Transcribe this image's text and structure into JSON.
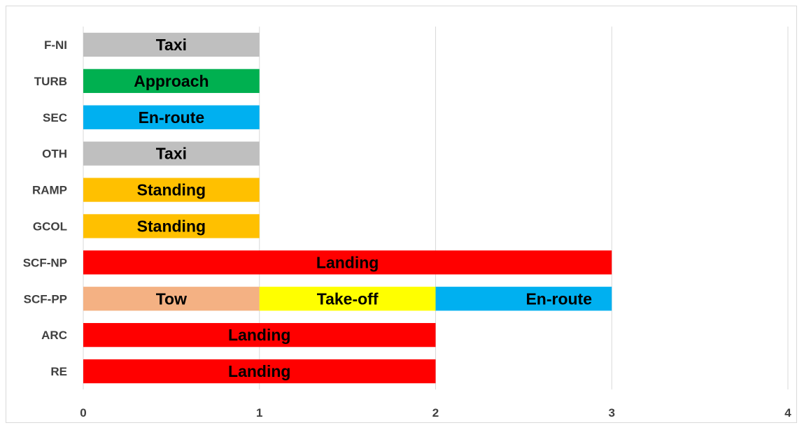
{
  "chart_data": {
    "type": "bar",
    "orientation": "horizontal",
    "stacked": true,
    "title": "",
    "xlabel": "",
    "ylabel": "",
    "xlim": [
      0,
      4
    ],
    "x_ticks": [
      "0",
      "1",
      "2",
      "3",
      "4"
    ],
    "grid": "vertical",
    "legend": "none",
    "categories": [
      "F-NI",
      "TURB",
      "SEC",
      "OTH",
      "RAMP",
      "GCOL",
      "SCF-NP",
      "SCF-PP",
      "ARC",
      "RE"
    ],
    "rows": [
      {
        "category": "F-NI",
        "segments": [
          {
            "label": "Taxi",
            "value": 1,
            "color": "#bfbfbf"
          }
        ]
      },
      {
        "category": "TURB",
        "segments": [
          {
            "label": "Approach",
            "value": 1,
            "color": "#00b050"
          }
        ]
      },
      {
        "category": "SEC",
        "segments": [
          {
            "label": "En-route",
            "value": 1,
            "color": "#00b0f0"
          }
        ]
      },
      {
        "category": "OTH",
        "segments": [
          {
            "label": "Taxi",
            "value": 1,
            "color": "#bfbfbf"
          }
        ]
      },
      {
        "category": "RAMP",
        "segments": [
          {
            "label": "Standing",
            "value": 1,
            "color": "#ffc000"
          }
        ]
      },
      {
        "category": "GCOL",
        "segments": [
          {
            "label": "Standing",
            "value": 1,
            "color": "#ffc000"
          }
        ]
      },
      {
        "category": "SCF-NP",
        "segments": [
          {
            "label": "Landing",
            "value": 3,
            "color": "#ff0000"
          }
        ]
      },
      {
        "category": "SCF-PP",
        "segments": [
          {
            "label": "Tow",
            "value": 1,
            "color": "#f4b183"
          },
          {
            "label": "Take-off",
            "value": 1,
            "color": "#ffff00"
          },
          {
            "label": "En-route",
            "value": 1,
            "color": "#00b0f0"
          }
        ]
      },
      {
        "category": "ARC",
        "segments": [
          {
            "label": "Landing",
            "value": 2,
            "color": "#ff0000"
          }
        ]
      },
      {
        "category": "RE",
        "segments": [
          {
            "label": "Landing",
            "value": 2,
            "color": "#ff0000"
          }
        ]
      }
    ]
  }
}
